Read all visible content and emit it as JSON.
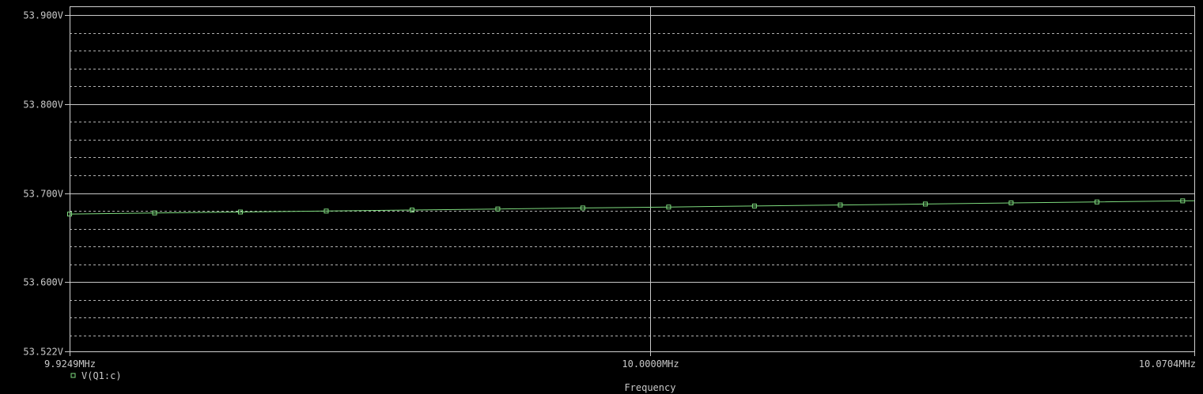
{
  "chart_data": {
    "type": "line",
    "xlabel": "Frequency",
    "ylabel": "",
    "x_ticks": [
      {
        "value": 9.9249,
        "label": "9.9249MHz"
      },
      {
        "value": 10.0,
        "label": "10.0000MHz"
      },
      {
        "value": 10.0704,
        "label": "10.0704MHz"
      }
    ],
    "y_ticks": [
      {
        "value": 53.9,
        "label": "53.900V"
      },
      {
        "value": 53.8,
        "label": "53.800V"
      },
      {
        "value": 53.7,
        "label": "53.700V"
      },
      {
        "value": 53.6,
        "label": "53.600V"
      },
      {
        "value": 53.522,
        "label": "53.522V"
      }
    ],
    "xlim": [
      9.9249,
      10.0704
    ],
    "ylim": [
      53.522,
      53.91
    ],
    "grid": true,
    "legend_position": "bottom-left",
    "series": [
      {
        "name": "V(Q1:c)",
        "color": "#7fdc7f",
        "marker": "square",
        "x": [
          9.9249,
          9.9359,
          9.947,
          9.9581,
          9.9692,
          9.9803,
          9.9913,
          10.0024,
          10.0135,
          10.0246,
          10.0356,
          10.0467,
          10.0578,
          10.0689,
          10.0704
        ],
        "y": [
          53.6764,
          53.6776,
          53.6787,
          53.6798,
          53.6809,
          53.6821,
          53.6832,
          53.6843,
          53.6855,
          53.6866,
          53.6877,
          53.6889,
          53.69,
          53.6912,
          53.6913
        ],
        "marker_x": [
          9.9249,
          9.9359,
          9.947,
          9.9581,
          9.9692,
          9.9803,
          9.9913,
          10.0024,
          10.0135,
          10.0246,
          10.0356,
          10.0467,
          10.0578,
          10.0689
        ],
        "marker_y": [
          53.6764,
          53.6776,
          53.6787,
          53.6798,
          53.6809,
          53.6821,
          53.6832,
          53.6843,
          53.6855,
          53.6866,
          53.6877,
          53.6889,
          53.69,
          53.6912
        ]
      }
    ]
  }
}
